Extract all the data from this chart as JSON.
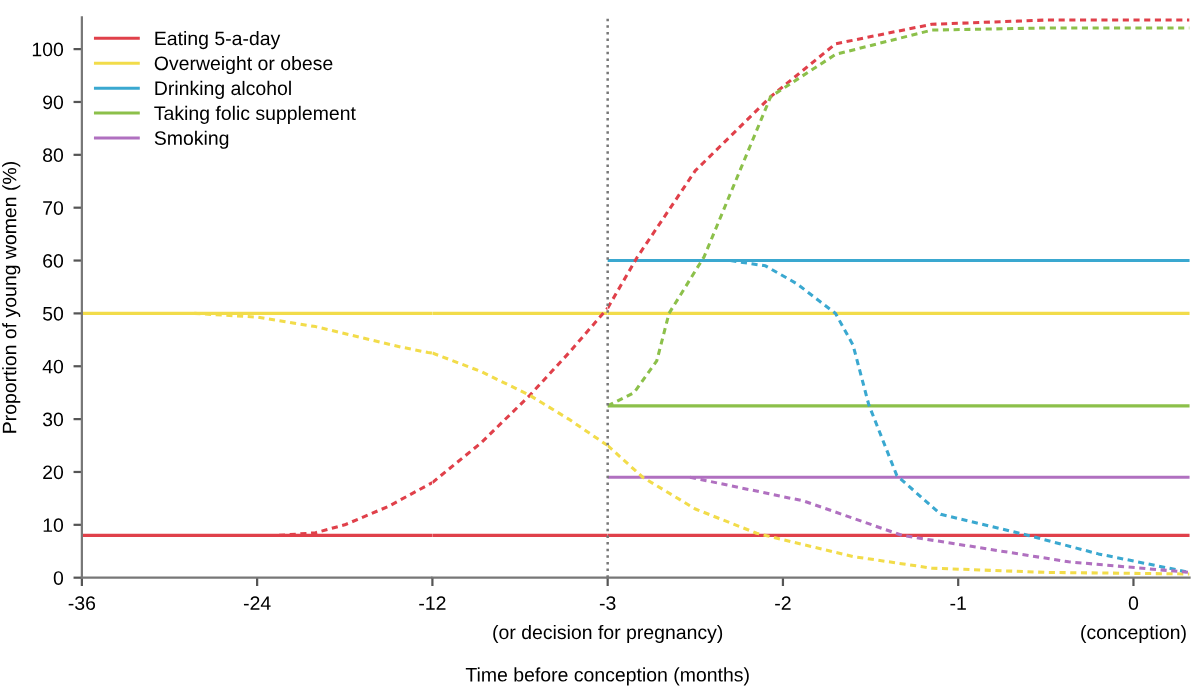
{
  "chart_data": [
    {
      "type": "line",
      "ylabel": "Proportion of young women (%)",
      "xlim": [
        -36,
        -12
      ],
      "ylim": [
        0,
        106
      ],
      "xticks": [
        -36,
        -24
      ],
      "yticks": [
        0,
        10,
        20,
        30,
        40,
        50,
        60,
        70,
        80,
        90,
        100
      ],
      "grid": false,
      "series": [
        {
          "color": "#e0404a",
          "line_style": "solid",
          "x": [
            -36,
            -12
          ],
          "values": [
            8,
            8
          ]
        },
        {
          "color": "#f2dc4a",
          "line_style": "solid",
          "x": [
            -36,
            -12
          ],
          "values": [
            50,
            50
          ]
        },
        {
          "color": "#e0404a",
          "line_style": "dashed",
          "x": [
            -22.5,
            -20,
            -18,
            -15,
            -12
          ],
          "values": [
            8,
            8.5,
            10,
            13.5,
            18
          ]
        },
        {
          "color": "#f2dc4a",
          "line_style": "dashed",
          "x": [
            -28.3,
            -24,
            -20,
            -17,
            -14.1,
            -12.3,
            -12
          ],
          "values": [
            50,
            49.3,
            47.5,
            45.5,
            43.6,
            42.6,
            42.5
          ]
        }
      ]
    },
    {
      "type": "line",
      "xlim": [
        -12,
        -3
      ],
      "ylim": [
        0,
        106
      ],
      "xticks": [
        -12,
        -3
      ],
      "grid": false,
      "tick_labels": "x",
      "annotations": [
        "(or decision for pregnancy)"
      ],
      "series": [
        {
          "color": "#e0404a",
          "line_style": "solid",
          "x": [
            -12,
            -3
          ],
          "values": [
            8,
            8
          ]
        },
        {
          "color": "#f2dc4a",
          "line_style": "solid",
          "x": [
            -12,
            -3
          ],
          "values": [
            50,
            50
          ]
        },
        {
          "color": "#e0404a",
          "line_style": "dashed",
          "x": [
            -12,
            -9.5,
            -7,
            -5,
            -3
          ],
          "values": [
            18,
            25.5,
            34.5,
            42.5,
            51
          ]
        },
        {
          "color": "#f2dc4a",
          "line_style": "dashed",
          "x": [
            -12,
            -9.5,
            -7,
            -5,
            -3.2,
            -3
          ],
          "values": [
            42.5,
            39,
            34.5,
            30,
            25.5,
            25
          ]
        }
      ]
    },
    {
      "type": "line",
      "xlabel": "Time before conception (months)",
      "xlim": [
        -3,
        0.32
      ],
      "ylim": [
        0,
        106
      ],
      "xticks": [
        -2,
        -1,
        0
      ],
      "annotations": [
        "(conception)"
      ],
      "grid": false,
      "tick_labels": "x",
      "legend": "top left",
      "ref_lines": [
        {
          "axis": "x",
          "value": -3,
          "color": "#777777",
          "line_style": "dotted"
        }
      ],
      "series": [
        {
          "name": "Eating 5-a-day",
          "color": "#e0404a",
          "line_style": "solid",
          "x": [
            -3,
            0.32
          ],
          "values": [
            8,
            8
          ]
        },
        {
          "name": "Overweight or obese",
          "color": "#f2dc4a",
          "line_style": "solid",
          "x": [
            -3,
            0.32
          ],
          "values": [
            50,
            50
          ]
        },
        {
          "name": "Drinking alcohol",
          "color": "#3aa8d0",
          "line_style": "solid",
          "x": [
            -3,
            0.32
          ],
          "values": [
            60,
            60
          ]
        },
        {
          "name": "Taking folic supplement",
          "color": "#8cc04a",
          "line_style": "solid",
          "x": [
            -3,
            0.32
          ],
          "values": [
            32.5,
            32.5
          ]
        },
        {
          "name": "Smoking",
          "color": "#b070c0",
          "line_style": "solid",
          "x": [
            -3,
            0.32
          ],
          "values": [
            19,
            19
          ]
        },
        {
          "color": "#e0404a",
          "line_style": "dashed",
          "x": [
            -3,
            -2.83,
            -2.5,
            -2.07,
            -1.7,
            -1.15,
            -0.5,
            0.32
          ],
          "values": [
            51,
            60.7,
            77,
            91,
            101,
            104.7,
            105.5,
            105.5
          ]
        },
        {
          "color": "#f2dc4a",
          "line_style": "dashed",
          "x": [
            -3,
            -2.8,
            -2.5,
            -2.15,
            -1.6,
            -1.15,
            -0.5,
            0.32
          ],
          "values": [
            25,
            19,
            13,
            8.4,
            4,
            1.8,
            1,
            0.7
          ]
        },
        {
          "color": "#3aa8d0",
          "line_style": "dashed",
          "x": [
            -2.3,
            -2.1,
            -1.92,
            -1.7,
            -1.6,
            -1.51,
            -1.35,
            -1.1,
            -0.6,
            -0.2,
            0.32
          ],
          "values": [
            60,
            59,
            55.6,
            50,
            44,
            32.7,
            19.3,
            12,
            8,
            4.5,
            1
          ]
        },
        {
          "color": "#8cc04a",
          "line_style": "dashed",
          "x": [
            -3,
            -2.85,
            -2.72,
            -2.65,
            -2.45,
            -2.07,
            -1.7,
            -1.15,
            -0.5,
            0.32
          ],
          "values": [
            32.5,
            35,
            41,
            50,
            60.7,
            91,
            99,
            103.6,
            104,
            104
          ]
        },
        {
          "color": "#b070c0",
          "line_style": "dashed",
          "x": [
            -2.53,
            -1.88,
            -1.32,
            -0.37,
            0.32
          ],
          "values": [
            19,
            14.5,
            8,
            3,
            1
          ]
        }
      ]
    }
  ]
}
